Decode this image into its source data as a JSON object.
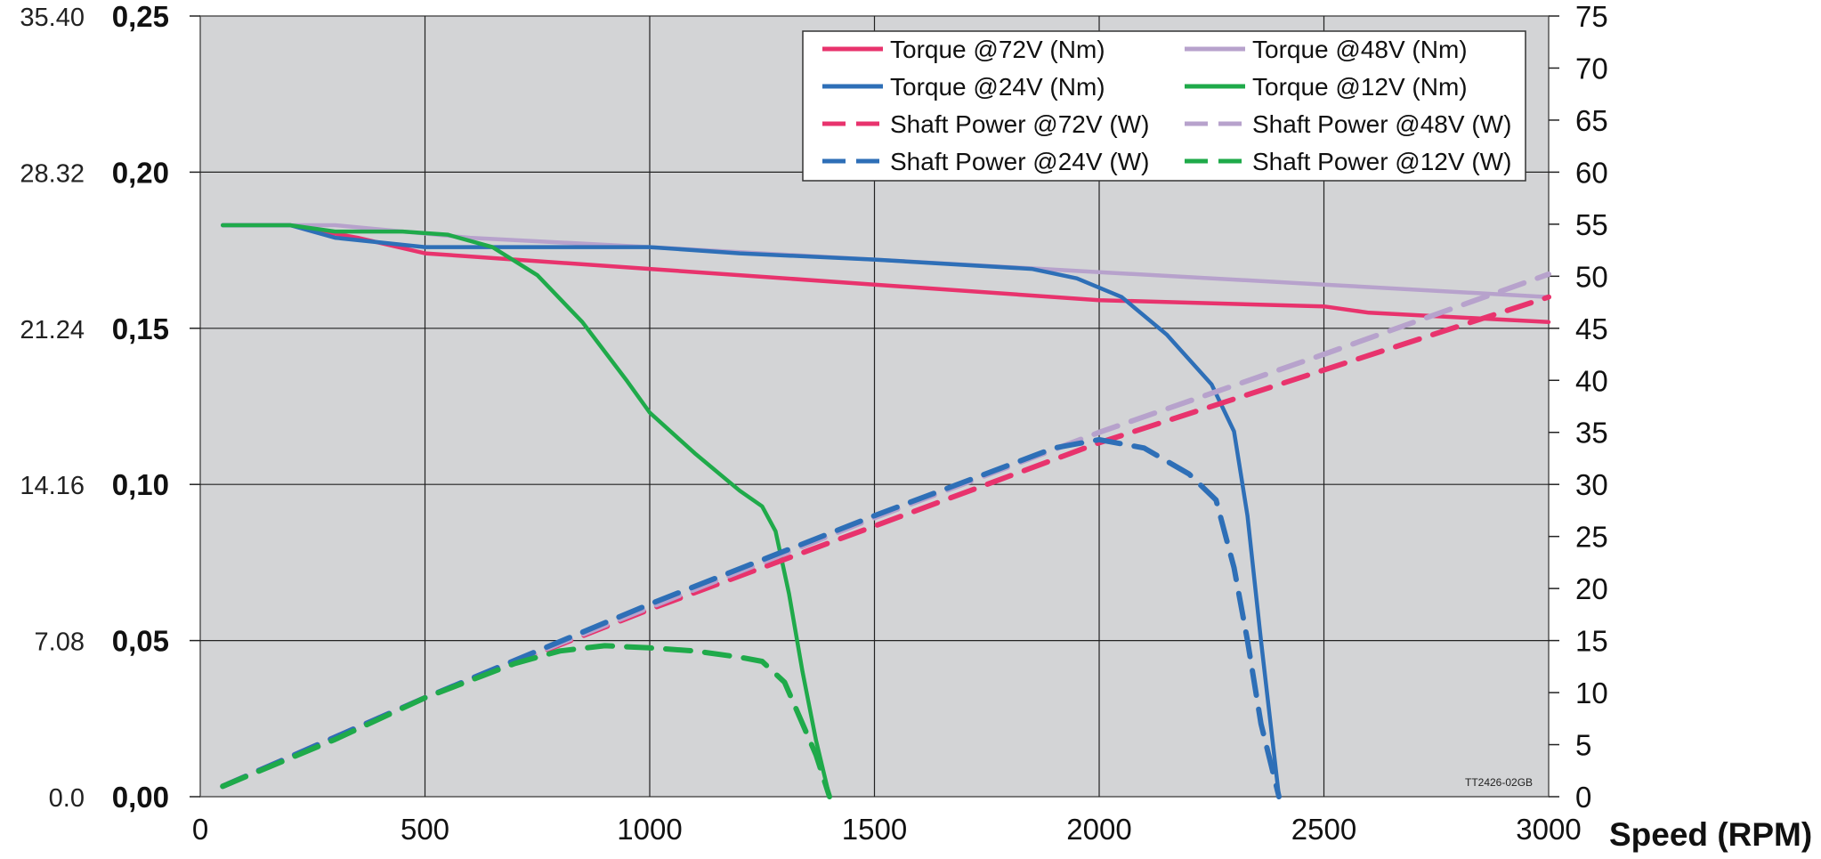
{
  "chart_data": {
    "type": "line",
    "xlabel": "Speed (RPM)",
    "xlim": [
      0,
      3000
    ],
    "xticks": [
      "0",
      "500",
      "1000",
      "1500",
      "2000",
      "2500",
      "3000"
    ],
    "ylim_torque": [
      0,
      0.25
    ],
    "yticks_torque_inner": [
      "0,00",
      "0,05",
      "0,10",
      "0,15",
      "0,20",
      "0,25"
    ],
    "yticks_torque_outer": [
      "0.0",
      "7.08",
      "14.16",
      "21.24",
      "28.32",
      "35.40"
    ],
    "ylim_power": [
      0,
      75
    ],
    "yticks_power": [
      "0",
      "5",
      "10",
      "15",
      "20",
      "25",
      "30",
      "35",
      "40",
      "45",
      "50",
      "55",
      "60",
      "65",
      "70",
      "75"
    ],
    "grid": true,
    "legend_position": "top-right",
    "code_label": "TT2426-02GB",
    "colors": {
      "v72": "#e8336d",
      "v48": "#b7a2cc",
      "v24": "#2e6fb7",
      "v12": "#1faa4a",
      "plot_bg": "#d3d4d6"
    },
    "series": [
      {
        "name": "Torque @72V (Nm)",
        "axis": "torque",
        "style": "solid",
        "color_key": "v72",
        "x": [
          50,
          200,
          350,
          500,
          700,
          1000,
          1500,
          2000,
          2500,
          2600,
          3000
        ],
        "y": [
          0.183,
          0.183,
          0.179,
          0.174,
          0.172,
          0.169,
          0.164,
          0.159,
          0.157,
          0.155,
          0.152
        ]
      },
      {
        "name": "Torque @48V (Nm)",
        "axis": "torque",
        "style": "solid",
        "color_key": "v48",
        "x": [
          50,
          300,
          600,
          1000,
          1500,
          2000,
          2500,
          3000
        ],
        "y": [
          0.183,
          0.183,
          0.179,
          0.176,
          0.172,
          0.168,
          0.164,
          0.16
        ]
      },
      {
        "name": "Torque @24V (Nm)",
        "axis": "torque",
        "style": "solid",
        "color_key": "v24",
        "x": [
          50,
          200,
          300,
          500,
          800,
          1000,
          1200,
          1500,
          1850,
          1950,
          2050,
          2150,
          2250,
          2300,
          2330,
          2360,
          2400
        ],
        "y": [
          0.183,
          0.183,
          0.179,
          0.176,
          0.176,
          0.176,
          0.174,
          0.172,
          0.169,
          0.166,
          0.16,
          0.148,
          0.132,
          0.117,
          0.09,
          0.05,
          0.0
        ]
      },
      {
        "name": "Torque @12V (Nm)",
        "axis": "torque",
        "style": "solid",
        "color_key": "v12",
        "x": [
          50,
          200,
          300,
          450,
          550,
          650,
          750,
          850,
          950,
          1000,
          1100,
          1200,
          1250,
          1280,
          1310,
          1340,
          1370,
          1400
        ],
        "y": [
          0.183,
          0.183,
          0.181,
          0.181,
          0.18,
          0.176,
          0.167,
          0.152,
          0.133,
          0.123,
          0.11,
          0.098,
          0.093,
          0.085,
          0.065,
          0.04,
          0.018,
          0.0
        ]
      },
      {
        "name": "Shaft Power @72V (W)",
        "axis": "power",
        "style": "dashed",
        "color_key": "v72",
        "x": [
          50,
          500,
          1000,
          1500,
          2000,
          2500,
          3000
        ],
        "y": [
          1,
          9.5,
          18,
          26,
          34,
          41,
          48
        ]
      },
      {
        "name": "Shaft Power @48V (W)",
        "axis": "power",
        "style": "dashed",
        "color_key": "v48",
        "x": [
          50,
          500,
          1000,
          1500,
          2000,
          2500,
          3000
        ],
        "y": [
          1,
          9.5,
          18.2,
          26.8,
          35,
          42.5,
          50.2
        ]
      },
      {
        "name": "Shaft Power @24V (W)",
        "axis": "power",
        "style": "dashed",
        "color_key": "v24",
        "x": [
          50,
          500,
          1000,
          1500,
          1900,
          2000,
          2100,
          2200,
          2260,
          2300,
          2330,
          2360,
          2400
        ],
        "y": [
          1,
          9.5,
          18.5,
          27,
          33.5,
          34.3,
          33.5,
          31,
          28.5,
          22,
          15,
          7,
          0
        ]
      },
      {
        "name": "Shaft Power @12V (W)",
        "axis": "power",
        "style": "dashed",
        "color_key": "v12",
        "x": [
          50,
          300,
          500,
          700,
          800,
          900,
          1000,
          1100,
          1200,
          1250,
          1300,
          1340,
          1370,
          1400
        ],
        "y": [
          1,
          5.5,
          9.5,
          12.8,
          14,
          14.5,
          14.3,
          14,
          13.4,
          13,
          11,
          7,
          4,
          0
        ]
      }
    ]
  }
}
